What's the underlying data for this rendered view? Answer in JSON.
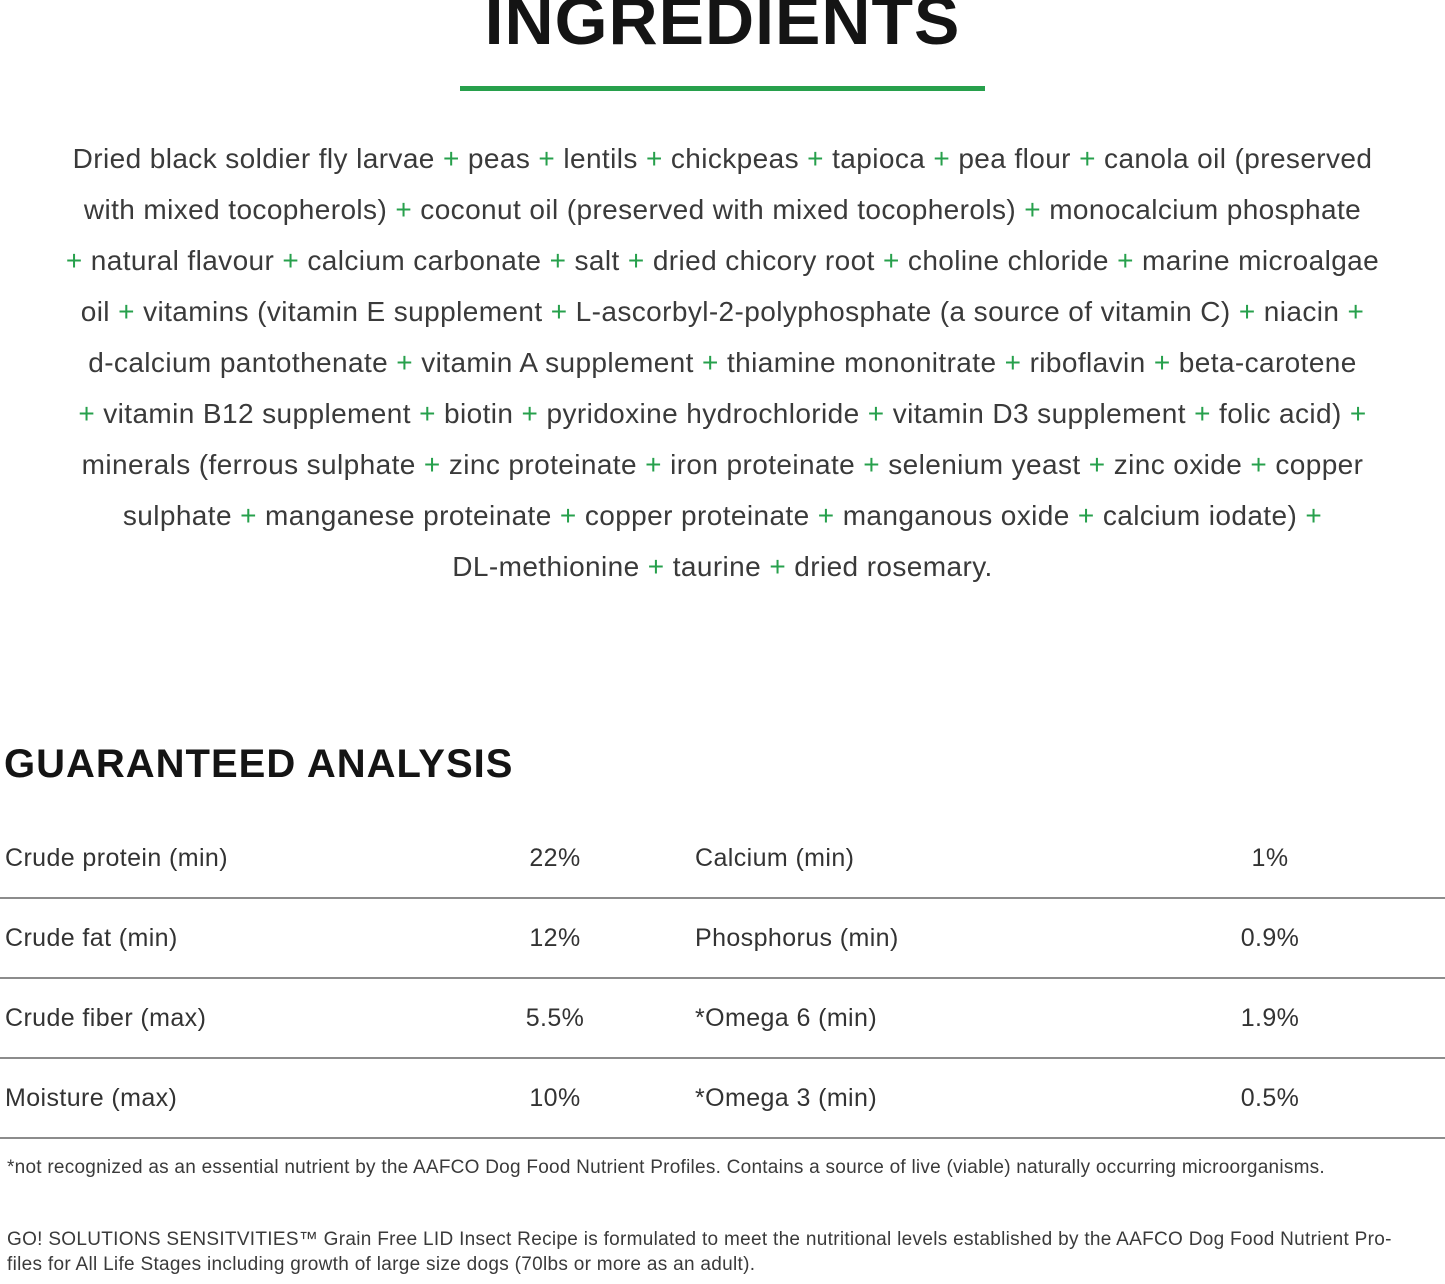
{
  "page": {
    "title": "INGREDIENTS",
    "accent_green": "#27a04c"
  },
  "ingredients": {
    "lines": [
      "Dried black soldier fly larvae + peas + lentils + chickpeas + tapioca + pea flour + canola oil (preserved",
      "with mixed tocopherols) + coconut oil (preserved with mixed tocopherols) + monocalcium phosphate",
      "+ natural flavour + calcium carbonate + salt + dried chicory root + choline chloride + marine microalgae",
      "oil + vitamins (vitamin E supplement + L-ascorbyl-2-polyphosphate (a source of vitamin C) + niacin +",
      "d-calcium pantothenate + vitamin A supplement + thiamine mononitrate + riboflavin + beta-carotene",
      "+ vitamin B12 supplement + biotin + pyridoxine hydrochloride + vitamin D3 supplement + folic acid) +",
      "minerals (ferrous sulphate + zinc proteinate + iron proteinate + selenium yeast + zinc oxide + copper",
      "sulphate + manganese proteinate + copper proteinate + manganous oxide + calcium iodate) +",
      "DL-methionine + taurine + dried rosemary."
    ]
  },
  "analysis": {
    "heading": "GUARANTEED ANALYSIS",
    "rows": [
      {
        "left_label": "Crude protein (min)",
        "left_value": "22%",
        "right_label": "Calcium (min)",
        "right_value": "1%"
      },
      {
        "left_label": "Crude fat (min)",
        "left_value": "12%",
        "right_label": "Phosphorus (min)",
        "right_value": "0.9%"
      },
      {
        "left_label": "Crude fiber (max)",
        "left_value": "5.5%",
        "right_label": "*Omega 6 (min)",
        "right_value": "1.9%"
      },
      {
        "left_label": "Moisture (max)",
        "left_value": "10%",
        "right_label": "*Omega 3 (min)",
        "right_value": "0.5%"
      }
    ],
    "footnote": "*not recognized as an essential nutrient by the AAFCO Dog Food Nutrient Profiles. Contains a source of live (viable) naturally occurring microorganisms."
  },
  "footer": {
    "line1": "GO! SOLUTIONS SENSITVITIES™ Grain Free LID Insect Recipe is formulated to meet the nutritional levels established by the AAFCO Dog Food Nutrient Pro-",
    "line2": "files for All Life Stages including growth of large size dogs (70lbs or more as an adult)."
  }
}
